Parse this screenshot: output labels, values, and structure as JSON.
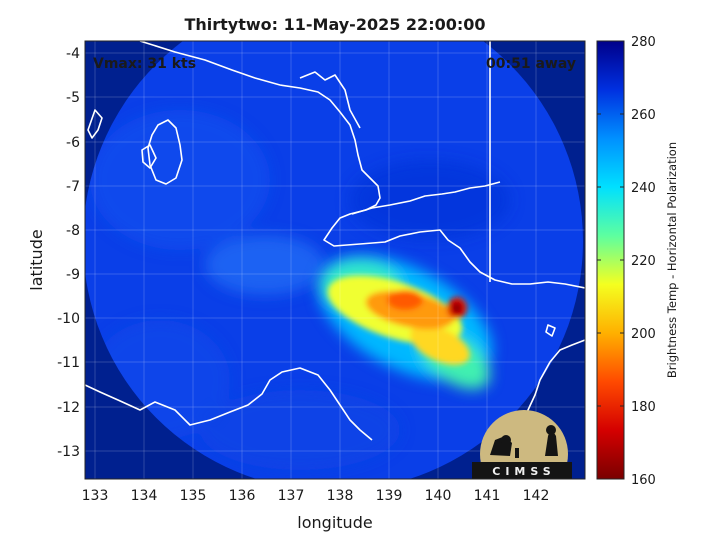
{
  "title": "Thirtytwo: 11-May-2025 22:00:00",
  "vmax_label": "Vmax: 31 kts",
  "away_label": "00:51 away",
  "xlabel": "longitude",
  "ylabel": "latitude",
  "colorbar_label": "Brightness Temp - Horizontal Polarization",
  "logo_text": "CIMSS",
  "x_ticks": [
    "133",
    "134",
    "135",
    "136",
    "137",
    "138",
    "139",
    "140",
    "141",
    "142"
  ],
  "y_ticks": [
    "-4",
    "-5",
    "-6",
    "-7",
    "-8",
    "-9",
    "-10",
    "-11",
    "-12",
    "-13"
  ],
  "cbar_ticks": [
    "280",
    "260",
    "240",
    "220",
    "200",
    "180",
    "160"
  ],
  "colors": {
    "background_cold": "#00208f",
    "swath_base": "#0a3fe8",
    "coast": "#ffffff",
    "colormap": [
      "#7a0000",
      "#d40000",
      "#ff4a00",
      "#ffb000",
      "#f4ff20",
      "#5dffa0",
      "#00e0ff",
      "#0090ff",
      "#0030e0",
      "#00008a"
    ]
  },
  "chart_data": {
    "type": "heatmap",
    "xlim": [
      132.8,
      142.9
    ],
    "ylim": [
      -13.6,
      -3.7
    ],
    "clim": [
      160,
      280
    ],
    "grid": true,
    "colormap": "jet",
    "swath_center": [
      137.8,
      -8.9
    ],
    "features": [
      {
        "name": "convective core",
        "lon": 140.3,
        "lat": -9.8,
        "tb": 165
      },
      {
        "name": "deep convection band",
        "lon": 139.3,
        "lat": -9.8,
        "tb": 195
      },
      {
        "name": "rain band",
        "lon": 139.8,
        "lat": -10.6,
        "tb": 205
      },
      {
        "name": "outer cloud",
        "lon": 138.6,
        "lat": -9.2,
        "tb": 215
      }
    ]
  }
}
